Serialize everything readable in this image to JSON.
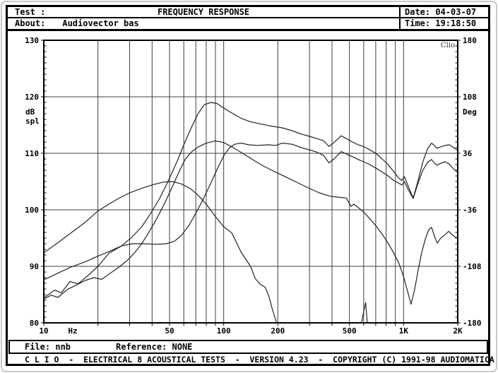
{
  "header": {
    "test_label": "Test :",
    "title": "FREQUENCY RESPONSE",
    "date": "Date: 04-03-07",
    "about_label": "About:",
    "about_value": "Audiovector bas",
    "time": "Time: 19:18:50"
  },
  "footer": {
    "file": "File: nnb",
    "reference": "Reference: NONE",
    "credits": "C L I O  -  ELECTRICAL 8 ACOUSTICAL TESTS  -  VERSION 4.23  -  COPYRIGHT (C) 1991-98 AUDIOMATICA"
  },
  "colors": {
    "background": "#ffffff",
    "frame": "#000000",
    "grid": "#3f3f3f",
    "trace": "#222222",
    "text": "#000000",
    "watermark": "#333333"
  },
  "chart_data": {
    "type": "line",
    "title": "FREQUENCY RESPONSE",
    "watermark": "Clio",
    "grid": true,
    "x_axis": {
      "scale": "log",
      "min": 10,
      "max": 2000,
      "unit_label": "Hz",
      "tick_labels": [
        "10",
        "50",
        "100",
        "200",
        "500",
        "1K",
        "2K"
      ],
      "tick_values": [
        10,
        50,
        100,
        200,
        500,
        1000,
        2000
      ],
      "gridline_values": [
        20,
        30,
        40,
        50,
        60,
        70,
        80,
        90,
        100,
        200,
        300,
        400,
        500,
        600,
        700,
        800,
        900,
        1000,
        2000
      ]
    },
    "y_axis_left": {
      "label_line1": "dB",
      "label_line2": "spl",
      "min": 80,
      "max": 130,
      "tick_values": [
        130,
        120,
        110,
        100,
        90,
        80
      ],
      "gridline_values": [
        120,
        110,
        100,
        90
      ]
    },
    "y_axis_right": {
      "label": "Deg",
      "min": -180,
      "max": 180,
      "tick_values": [
        180,
        108,
        36,
        -36,
        -108,
        -180
      ]
    },
    "series": [
      {
        "name": "trace-1-woofer-total",
        "points": [
          [
            10,
            87.6
          ],
          [
            12,
            88.8
          ],
          [
            14,
            89.8
          ],
          [
            17,
            90.8
          ],
          [
            20,
            91.8
          ],
          [
            23,
            92.6
          ],
          [
            27,
            93.6
          ],
          [
            31,
            95.2
          ],
          [
            35,
            97
          ],
          [
            39,
            99.2
          ],
          [
            44,
            102
          ],
          [
            49,
            105
          ],
          [
            55,
            108.5
          ],
          [
            60,
            111.5
          ],
          [
            66,
            114.5
          ],
          [
            72,
            117
          ],
          [
            78,
            118.6
          ],
          [
            85,
            119
          ],
          [
            92,
            118.8
          ],
          [
            100,
            118
          ],
          [
            110,
            117.2
          ],
          [
            125,
            116.2
          ],
          [
            140,
            115.6
          ],
          [
            160,
            115.2
          ],
          [
            185,
            114.8
          ],
          [
            212,
            114.5
          ],
          [
            240,
            114
          ],
          [
            270,
            113.4
          ],
          [
            300,
            113
          ],
          [
            330,
            112.6
          ],
          [
            360,
            112.2
          ],
          [
            385,
            111.2
          ],
          [
            410,
            111.9
          ],
          [
            450,
            113.1
          ],
          [
            480,
            112.6
          ],
          [
            520,
            112
          ],
          [
            560,
            111.5
          ],
          [
            600,
            111.2
          ],
          [
            650,
            110.6
          ],
          [
            700,
            110
          ],
          [
            760,
            109
          ],
          [
            820,
            108
          ],
          [
            880,
            106.8
          ],
          [
            940,
            105.6
          ],
          [
            980,
            105.2
          ],
          [
            1010,
            105.9
          ],
          [
            1060,
            104.2
          ],
          [
            1130,
            102.1
          ],
          [
            1200,
            105
          ],
          [
            1280,
            108.5
          ],
          [
            1360,
            110.8
          ],
          [
            1430,
            111.8
          ],
          [
            1470,
            111.5
          ],
          [
            1530,
            110.9
          ],
          [
            1600,
            111.1
          ],
          [
            1700,
            111.4
          ],
          [
            1800,
            111.5
          ],
          [
            1900,
            111
          ],
          [
            2000,
            110.5
          ]
        ]
      },
      {
        "name": "trace-2-mid",
        "points": [
          [
            10,
            84.4
          ],
          [
            11.5,
            85.8
          ],
          [
            12.5,
            85.3
          ],
          [
            14,
            87.3
          ],
          [
            15.5,
            86.9
          ],
          [
            17.5,
            88.3
          ],
          [
            20,
            90
          ],
          [
            23,
            92.3
          ],
          [
            27,
            93.6
          ],
          [
            31,
            94
          ],
          [
            36,
            94
          ],
          [
            42,
            93.9
          ],
          [
            48,
            94
          ],
          [
            53,
            94.4
          ],
          [
            58,
            95.4
          ],
          [
            64,
            97.2
          ],
          [
            70,
            99.4
          ],
          [
            77,
            101.9
          ],
          [
            85,
            104.8
          ],
          [
            93,
            107.5
          ],
          [
            101,
            109.8
          ],
          [
            108,
            111
          ],
          [
            115,
            111.6
          ],
          [
            125,
            111.8
          ],
          [
            138,
            111.5
          ],
          [
            155,
            111.4
          ],
          [
            175,
            111.5
          ],
          [
            195,
            111.4
          ],
          [
            212,
            111.8
          ],
          [
            240,
            111.6
          ],
          [
            270,
            111
          ],
          [
            300,
            110.6
          ],
          [
            330,
            110.2
          ],
          [
            360,
            109.6
          ],
          [
            385,
            108.3
          ],
          [
            410,
            109
          ],
          [
            450,
            110.3
          ],
          [
            480,
            109.9
          ],
          [
            520,
            109.4
          ],
          [
            560,
            108.9
          ],
          [
            600,
            108.5
          ],
          [
            650,
            108
          ],
          [
            700,
            107.4
          ],
          [
            760,
            106.7
          ],
          [
            820,
            106
          ],
          [
            880,
            105.2
          ],
          [
            940,
            104.7
          ],
          [
            980,
            104.4
          ],
          [
            1010,
            105
          ],
          [
            1060,
            103.6
          ],
          [
            1130,
            102
          ],
          [
            1200,
            104.6
          ],
          [
            1280,
            107
          ],
          [
            1360,
            108.4
          ],
          [
            1430,
            108.9
          ],
          [
            1470,
            108.4
          ],
          [
            1530,
            107.9
          ],
          [
            1600,
            108.2
          ],
          [
            1700,
            108.5
          ],
          [
            1780,
            108.2
          ],
          [
            1860,
            107.5
          ],
          [
            1930,
            107
          ],
          [
            2000,
            106.6
          ]
        ]
      },
      {
        "name": "trace-3-descending",
        "points": [
          [
            10,
            84.2
          ],
          [
            11,
            84.9
          ],
          [
            12,
            84.5
          ],
          [
            13.5,
            85.9
          ],
          [
            15,
            86.6
          ],
          [
            17,
            87.5
          ],
          [
            19,
            88
          ],
          [
            21,
            87.7
          ],
          [
            23,
            88.6
          ],
          [
            26,
            89.8
          ],
          [
            29,
            91
          ],
          [
            32,
            92.4
          ],
          [
            35,
            94
          ],
          [
            38,
            95.8
          ],
          [
            41,
            97.6
          ],
          [
            44,
            99.4
          ],
          [
            47,
            101.2
          ],
          [
            50,
            103
          ],
          [
            53,
            104.8
          ],
          [
            57,
            107
          ],
          [
            61,
            108.9
          ],
          [
            66,
            110.2
          ],
          [
            72,
            111.1
          ],
          [
            80,
            111.8
          ],
          [
            90,
            112.2
          ],
          [
            100,
            111.9
          ],
          [
            110,
            111.2
          ],
          [
            120,
            110.5
          ],
          [
            132,
            109.7
          ],
          [
            148,
            108.7
          ],
          [
            165,
            107.8
          ],
          [
            185,
            107
          ],
          [
            212,
            106.1
          ],
          [
            250,
            105
          ],
          [
            290,
            104
          ],
          [
            340,
            103
          ],
          [
            390,
            102.4
          ],
          [
            440,
            102.2
          ],
          [
            480,
            102.1
          ],
          [
            510,
            100.6
          ],
          [
            530,
            101
          ],
          [
            560,
            100.4
          ],
          [
            600,
            99.6
          ],
          [
            650,
            98.4
          ],
          [
            700,
            97.2
          ],
          [
            760,
            95.7
          ],
          [
            820,
            94.1
          ],
          [
            880,
            92.4
          ],
          [
            940,
            90.6
          ],
          [
            1000,
            88.2
          ],
          [
            1050,
            85.7
          ],
          [
            1100,
            83.3
          ],
          [
            1150,
            85.8
          ],
          [
            1200,
            89
          ],
          [
            1260,
            92.4
          ],
          [
            1320,
            94.8
          ],
          [
            1380,
            96.5
          ],
          [
            1430,
            96.9
          ],
          [
            1490,
            95.2
          ],
          [
            1540,
            94.1
          ],
          [
            1600,
            94.9
          ],
          [
            1700,
            95.6
          ],
          [
            1780,
            96.2
          ],
          [
            1860,
            95.6
          ],
          [
            1930,
            95.2
          ],
          [
            2000,
            95
          ]
        ]
      },
      {
        "name": "trace-4-port",
        "points": [
          [
            10,
            92.4
          ],
          [
            12,
            94.2
          ],
          [
            14,
            95.8
          ],
          [
            17,
            97.8
          ],
          [
            20,
            99.8
          ],
          [
            23,
            101
          ],
          [
            26,
            102
          ],
          [
            30,
            103
          ],
          [
            35,
            103.8
          ],
          [
            40,
            104.4
          ],
          [
            46,
            104.9
          ],
          [
            52,
            105
          ],
          [
            58,
            104.6
          ],
          [
            65,
            103.8
          ],
          [
            72,
            102.6
          ],
          [
            80,
            101
          ],
          [
            90,
            98.8
          ],
          [
            100,
            97
          ],
          [
            111,
            95.9
          ],
          [
            125,
            92.5
          ],
          [
            141,
            90
          ],
          [
            150,
            87.8
          ],
          [
            160,
            86.8
          ],
          [
            170,
            86.3
          ],
          [
            178,
            84.8
          ],
          [
            188,
            82
          ],
          [
            197,
            80
          ],
          [
            205,
            76
          ],
          [
            215,
            70
          ],
          [
            540,
            70
          ],
          [
            560,
            76
          ],
          [
            580,
            79.5
          ],
          [
            600,
            82
          ],
          [
            615,
            83.6
          ],
          [
            628,
            80
          ],
          [
            638,
            74
          ],
          [
            648,
            70
          ]
        ]
      }
    ]
  }
}
